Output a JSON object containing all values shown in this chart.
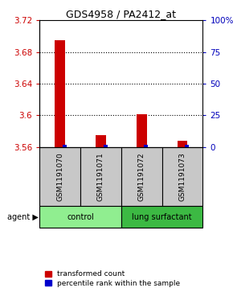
{
  "title": "GDS4958 / PA2412_at",
  "samples": [
    "GSM1191070",
    "GSM1191071",
    "GSM1191072",
    "GSM1191073"
  ],
  "red_values": [
    3.695,
    3.575,
    3.601,
    3.568
  ],
  "blue_values": [
    3.5625,
    3.5625,
    3.5625,
    3.5625
  ],
  "baseline": 3.56,
  "ylim_min": 3.56,
  "ylim_max": 3.72,
  "yticks_left": [
    3.56,
    3.6,
    3.64,
    3.68,
    3.72
  ],
  "yticks_right": [
    0,
    25,
    50,
    75,
    100
  ],
  "yticks_right_labels": [
    "0",
    "25",
    "50",
    "75",
    "100%"
  ],
  "groups": [
    {
      "label": "control",
      "indices": [
        0,
        1
      ]
    },
    {
      "label": "lung surfactant",
      "indices": [
        2,
        3
      ]
    }
  ],
  "group_colors": [
    "#90EE90",
    "#3CB943"
  ],
  "red_color": "#CC0000",
  "blue_color": "#0000CC",
  "left_tick_color": "#CC0000",
  "right_tick_color": "#0000BB",
  "legend_red": "transformed count",
  "legend_blue": "percentile rank within the sample",
  "background_label": "#C8C8C8",
  "red_bar_width": 0.25,
  "blue_bar_width": 0.1
}
